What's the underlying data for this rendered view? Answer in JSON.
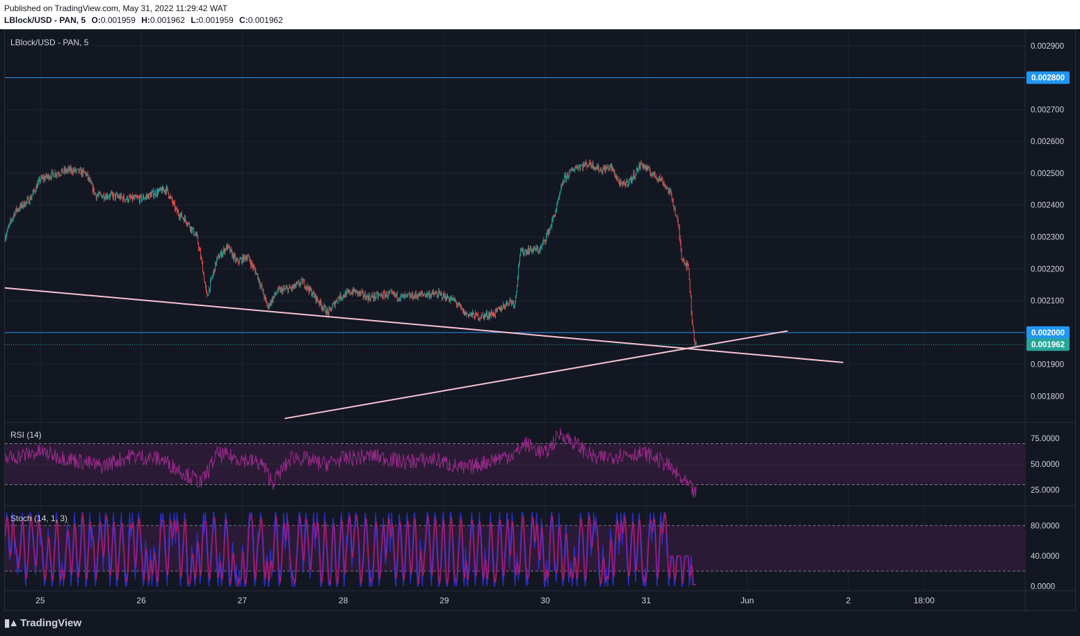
{
  "header": {
    "published": "Published on TradingView.com, May 31, 2022 11:29:42 WAT",
    "symbol": "LBlock/USD - PAN, 5",
    "o_label": "O:",
    "o_value": "0.001959",
    "h_label": "H:",
    "h_value": "0.001962",
    "l_label": "L:",
    "l_value": "0.001959",
    "c_label": "C:",
    "c_value": "0.001962"
  },
  "footer": {
    "brand": "TradingView"
  },
  "chart_data": [
    {
      "type": "candlestick",
      "title": "LBlock/USD - PAN, 5",
      "x_ticks": [
        "25",
        "26",
        "27",
        "28",
        "29",
        "30",
        "31",
        "Jun",
        "2",
        "18:00"
      ],
      "y_ticks": [
        "0.002900",
        "0.002800",
        "0.002700",
        "0.002600",
        "0.002500",
        "0.002400",
        "0.002300",
        "0.002200",
        "0.002100",
        "0.002000",
        "0.001900",
        "0.001800"
      ],
      "ylim": [
        0.00172,
        0.00295
      ],
      "x_range_days": [
        24.65,
        34.75
      ],
      "approx_close_path": [
        [
          24.65,
          0.0023
        ],
        [
          24.75,
          0.00238
        ],
        [
          24.9,
          0.00242
        ],
        [
          25.0,
          0.00248
        ],
        [
          25.15,
          0.0025
        ],
        [
          25.3,
          0.00251
        ],
        [
          25.45,
          0.0025
        ],
        [
          25.55,
          0.00243
        ],
        [
          25.7,
          0.00243
        ],
        [
          25.85,
          0.00242
        ],
        [
          26.0,
          0.00242
        ],
        [
          26.15,
          0.00244
        ],
        [
          26.25,
          0.00245
        ],
        [
          26.35,
          0.00238
        ],
        [
          26.45,
          0.00235
        ],
        [
          26.55,
          0.0023
        ],
        [
          26.6,
          0.00222
        ],
        [
          26.65,
          0.00211
        ],
        [
          26.75,
          0.00223
        ],
        [
          26.85,
          0.00227
        ],
        [
          26.95,
          0.00222
        ],
        [
          27.05,
          0.00224
        ],
        [
          27.15,
          0.00218
        ],
        [
          27.25,
          0.00208
        ],
        [
          27.35,
          0.00213
        ],
        [
          27.5,
          0.00214
        ],
        [
          27.6,
          0.00216
        ],
        [
          27.75,
          0.0021
        ],
        [
          27.85,
          0.00206
        ],
        [
          27.95,
          0.00211
        ],
        [
          28.1,
          0.00213
        ],
        [
          28.25,
          0.00211
        ],
        [
          28.45,
          0.00212
        ],
        [
          28.6,
          0.00211
        ],
        [
          28.8,
          0.00212
        ],
        [
          28.95,
          0.00212
        ],
        [
          29.1,
          0.0021
        ],
        [
          29.2,
          0.00206
        ],
        [
          29.35,
          0.00205
        ],
        [
          29.5,
          0.00206
        ],
        [
          29.65,
          0.0021
        ],
        [
          29.7,
          0.00209
        ],
        [
          29.75,
          0.00225
        ],
        [
          29.85,
          0.00226
        ],
        [
          29.95,
          0.00226
        ],
        [
          30.05,
          0.00233
        ],
        [
          30.12,
          0.0024
        ],
        [
          30.18,
          0.00248
        ],
        [
          30.3,
          0.00252
        ],
        [
          30.45,
          0.00253
        ],
        [
          30.55,
          0.00251
        ],
        [
          30.65,
          0.00252
        ],
        [
          30.75,
          0.00246
        ],
        [
          30.85,
          0.00248
        ],
        [
          30.95,
          0.00253
        ],
        [
          31.05,
          0.0025
        ],
        [
          31.15,
          0.00248
        ],
        [
          31.25,
          0.00243
        ],
        [
          31.32,
          0.00233
        ],
        [
          31.35,
          0.00224
        ],
        [
          31.42,
          0.0022
        ],
        [
          31.45,
          0.00205
        ],
        [
          31.48,
          0.00197
        ],
        [
          31.5,
          0.00196
        ]
      ],
      "horizontal_levels": [
        {
          "value": 0.0028,
          "label": "0.002800",
          "color": "#2196f3"
        },
        {
          "value": 0.002,
          "label": "0.002000",
          "color": "#2196f3"
        }
      ],
      "last_price": {
        "value": 0.001962,
        "label": "0.001962",
        "color": "#26a69a"
      },
      "trendlines": [
        {
          "from": [
            24.65,
            0.00214
          ],
          "to": [
            32.95,
            0.001906
          ],
          "color": "#f8c4d4"
        },
        {
          "from": [
            27.42,
            0.00173
          ],
          "to": [
            32.4,
            0.002005
          ],
          "color": "#f8c4d4"
        }
      ],
      "up_color": "#26a69a",
      "down_color": "#ef5350"
    },
    {
      "type": "line",
      "title": "RSI (14)",
      "y_ticks": [
        "75.0000",
        "50.0000",
        "25.0000"
      ],
      "ylim": [
        10,
        90
      ],
      "band": [
        30,
        70
      ],
      "color": "#9c2a8c",
      "approx_path": [
        [
          24.65,
          55
        ],
        [
          25.0,
          62
        ],
        [
          25.3,
          55
        ],
        [
          25.6,
          48
        ],
        [
          25.9,
          58
        ],
        [
          26.2,
          55
        ],
        [
          26.45,
          40
        ],
        [
          26.6,
          32
        ],
        [
          26.75,
          60
        ],
        [
          27.0,
          55
        ],
        [
          27.2,
          50
        ],
        [
          27.3,
          32
        ],
        [
          27.5,
          58
        ],
        [
          27.8,
          50
        ],
        [
          28.0,
          55
        ],
        [
          28.3,
          58
        ],
        [
          28.6,
          52
        ],
        [
          28.9,
          55
        ],
        [
          29.2,
          45
        ],
        [
          29.5,
          55
        ],
        [
          29.7,
          60
        ],
        [
          29.8,
          70
        ],
        [
          30.0,
          60
        ],
        [
          30.15,
          80
        ],
        [
          30.3,
          70
        ],
        [
          30.5,
          55
        ],
        [
          30.8,
          60
        ],
        [
          31.0,
          60
        ],
        [
          31.2,
          50
        ],
        [
          31.35,
          35
        ],
        [
          31.42,
          28
        ],
        [
          31.5,
          20
        ]
      ]
    },
    {
      "type": "line",
      "title": "Stoch (14, 1, 3)",
      "y_ticks": [
        "80.0000",
        "40.0000",
        "0.0000"
      ],
      "ylim": [
        -5,
        105
      ],
      "band": [
        20,
        80
      ],
      "series": [
        {
          "color": "#2a2fd8"
        },
        {
          "color": "#c2185b"
        }
      ]
    }
  ]
}
